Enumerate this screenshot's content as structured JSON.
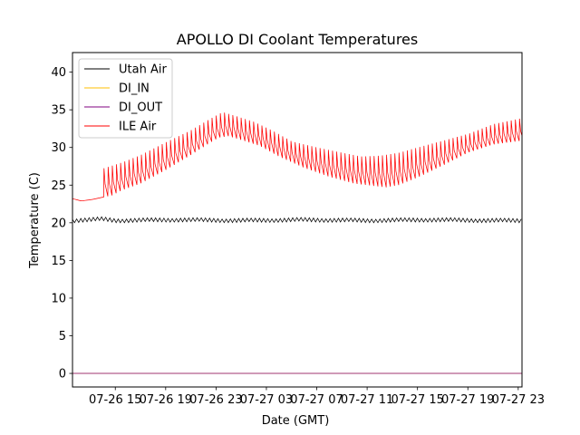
{
  "chart_data": {
    "type": "line",
    "title": "APOLLO DI Coolant Temperatures",
    "xlabel": "Date (GMT)",
    "ylabel": "Temperature (C)",
    "xlim": [
      11.6,
      47.3
    ],
    "ylim": [
      -1.8,
      42.6
    ],
    "x_unit": "hours since 07-26 00:00 GMT",
    "x_ticks": [
      {
        "value": 15,
        "label": "07-26 15"
      },
      {
        "value": 19,
        "label": "07-26 19"
      },
      {
        "value": 23,
        "label": "07-26 23"
      },
      {
        "value": 27,
        "label": "07-27 03"
      },
      {
        "value": 31,
        "label": "07-27 07"
      },
      {
        "value": 35,
        "label": "07-27 11"
      },
      {
        "value": 39,
        "label": "07-27 15"
      },
      {
        "value": 43,
        "label": "07-27 19"
      },
      {
        "value": 47,
        "label": "07-27 23"
      }
    ],
    "y_ticks": [
      0,
      5,
      10,
      15,
      20,
      25,
      30,
      35,
      40
    ],
    "legend": {
      "placement": "upper-left"
    },
    "series": [
      {
        "name": "Utah Air",
        "color": "#000000",
        "baseline": 20.3,
        "oscillation_amplitude": 0.3,
        "cycle_period_hours": 0.33,
        "x": [
          11.6,
          13.0,
          14.0,
          15.0,
          20.0,
          25.0,
          30.0,
          35.0,
          40.0,
          45.0,
          47.3
        ],
        "y": [
          20.3,
          20.4,
          20.5,
          20.3,
          20.4,
          20.3,
          20.4,
          20.3,
          20.4,
          20.3,
          20.3
        ]
      },
      {
        "name": "DI_IN",
        "color": "#ffbf00",
        "x": [
          11.6,
          47.3
        ],
        "y": [
          0.0,
          0.0
        ]
      },
      {
        "name": "DI_OUT",
        "color": "#800080",
        "x": [
          11.6,
          47.3
        ],
        "y": [
          0.0,
          0.0
        ]
      },
      {
        "name": "ILE Air",
        "color": "#ff0000",
        "baseline_x": [
          11.6,
          12.3,
          13.2,
          14.0,
          14.7,
          15.5,
          17.0,
          19.0,
          21.0,
          22.5,
          23.2,
          24.0,
          25.0,
          26.5,
          28.0,
          30.0,
          32.0,
          34.0,
          35.5,
          36.5,
          37.5,
          39.0,
          41.0,
          43.0,
          45.0,
          47.3
        ],
        "baseline_y": [
          23.2,
          22.9,
          23.1,
          23.4,
          23.6,
          24.3,
          25.2,
          27.0,
          29.0,
          30.6,
          31.3,
          31.5,
          31.0,
          30.2,
          28.8,
          27.3,
          26.1,
          25.2,
          24.9,
          24.7,
          25.0,
          26.0,
          27.6,
          29.3,
          30.4,
          30.9
        ],
        "peak_x": [
          11.6,
          13.2,
          14.0,
          15.5,
          17.0,
          19.0,
          21.0,
          22.5,
          23.5,
          24.5,
          26.0,
          27.5,
          29.0,
          31.0,
          33.0,
          34.5,
          36.0,
          37.5,
          39.0,
          41.0,
          43.0,
          45.0,
          47.3
        ],
        "peak_y": [
          23.2,
          23.2,
          27.2,
          28.0,
          29.0,
          30.7,
          32.3,
          33.8,
          34.7,
          34.2,
          33.4,
          32.2,
          30.8,
          30.0,
          29.3,
          28.8,
          28.9,
          29.3,
          30.0,
          30.9,
          31.8,
          33.1,
          33.9
        ],
        "spike_start_hour": 14.0,
        "cycle_period_hours": 0.33
      }
    ]
  }
}
